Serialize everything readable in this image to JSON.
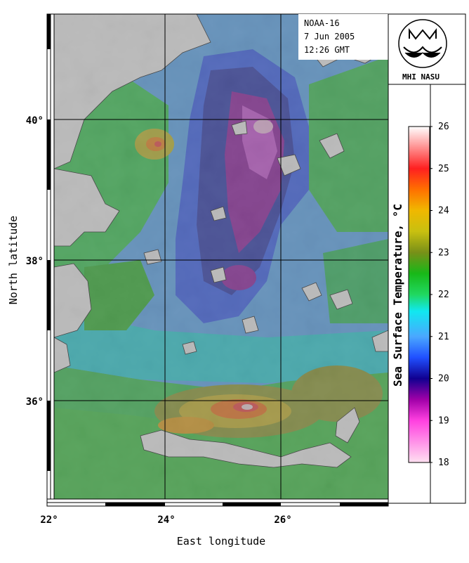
{
  "map": {
    "satellite": "NOAA-16",
    "date": "7 Jun 2005",
    "time": "12:26 GMT",
    "x_axis_title": "East longitude",
    "y_axis_title": "North latitude",
    "lon_ticks": [
      "22°",
      "24°",
      "26°"
    ],
    "lat_ticks": [
      "40°",
      "38°",
      "36°"
    ],
    "lon_range": [
      22,
      27.8
    ],
    "lat_range": [
      34.6,
      41.5
    ]
  },
  "colorbar": {
    "title": "Sea Surface Temperature, °C",
    "ticks": [
      "26",
      "25",
      "24",
      "23",
      "22",
      "21",
      "20",
      "19",
      "18"
    ],
    "range": [
      18,
      26
    ],
    "stops": [
      {
        "v": 18,
        "c": "#ffe0f0"
      },
      {
        "v": 19,
        "c": "#ff40e0"
      },
      {
        "v": 19.5,
        "c": "#a000a8"
      },
      {
        "v": 20,
        "c": "#100090"
      },
      {
        "v": 20.5,
        "c": "#2050ff"
      },
      {
        "v": 21,
        "c": "#4aa8ff"
      },
      {
        "v": 21.6,
        "c": "#10e8f0"
      },
      {
        "v": 22,
        "c": "#20d860"
      },
      {
        "v": 22.5,
        "c": "#18b818"
      },
      {
        "v": 23,
        "c": "#789018"
      },
      {
        "v": 23.5,
        "c": "#c8c010"
      },
      {
        "v": 24,
        "c": "#f0b800"
      },
      {
        "v": 24.5,
        "c": "#ff7000"
      },
      {
        "v": 25,
        "c": "#ff2020"
      },
      {
        "v": 26,
        "c": "#ffffff"
      }
    ]
  },
  "logo": {
    "label": "MHI NASU"
  }
}
